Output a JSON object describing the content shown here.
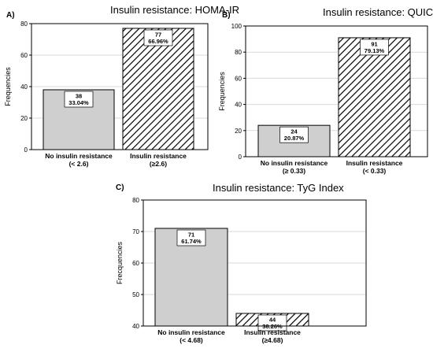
{
  "chart_data": [
    {
      "panel": "A)",
      "type": "bar",
      "title": "Insulin resistance: HOMA-IR",
      "ylabel": "Frequencies",
      "ylim": [
        0,
        80
      ],
      "yticks": [
        "0",
        "20",
        "40",
        "60",
        "80"
      ],
      "categories": [
        [
          "No insulin resistance",
          "(< 2.6)"
        ],
        [
          "Insulin resistance",
          "(≥2.6)"
        ]
      ],
      "values": [
        38,
        77
      ],
      "percent_labels": [
        "33.04%",
        "66.96%"
      ],
      "fills": [
        "solid",
        "hatched"
      ],
      "grid": true
    },
    {
      "panel": "B)",
      "type": "bar",
      "title": "Insulin resistance: QUICKI",
      "ylabel": "Frequencies",
      "ylim": [
        0,
        100
      ],
      "yticks": [
        "0",
        "20",
        "40",
        "60",
        "80",
        "100"
      ],
      "categories": [
        [
          "No insulin resistance",
          "(≥ 0.33)"
        ],
        [
          "Insulin resistance",
          "(< 0.33)"
        ]
      ],
      "values": [
        24,
        91
      ],
      "percent_labels": [
        "20.87%",
        "79.13%"
      ],
      "fills": [
        "solid",
        "hatched"
      ],
      "grid": true
    },
    {
      "panel": "C)",
      "type": "bar",
      "title": "Insulin resistance: TyG Index",
      "ylabel": "Frecquencies",
      "ylim": [
        40,
        80
      ],
      "yticks": [
        "40",
        "50",
        "60",
        "70",
        "80"
      ],
      "categories": [
        [
          "No insulin resistance",
          "(< 4.68)"
        ],
        [
          "Insulin resistance",
          "(≥4.68)"
        ]
      ],
      "values": [
        71,
        44
      ],
      "percent_labels": [
        "61.74%",
        "38.26%"
      ],
      "fills": [
        "solid",
        "hatched"
      ],
      "grid": true
    }
  ],
  "colors": {
    "bar_fill": "#cfcfcf",
    "hatch_line": "#000000",
    "grid": "#d9d9d9",
    "axis": "#000000"
  }
}
